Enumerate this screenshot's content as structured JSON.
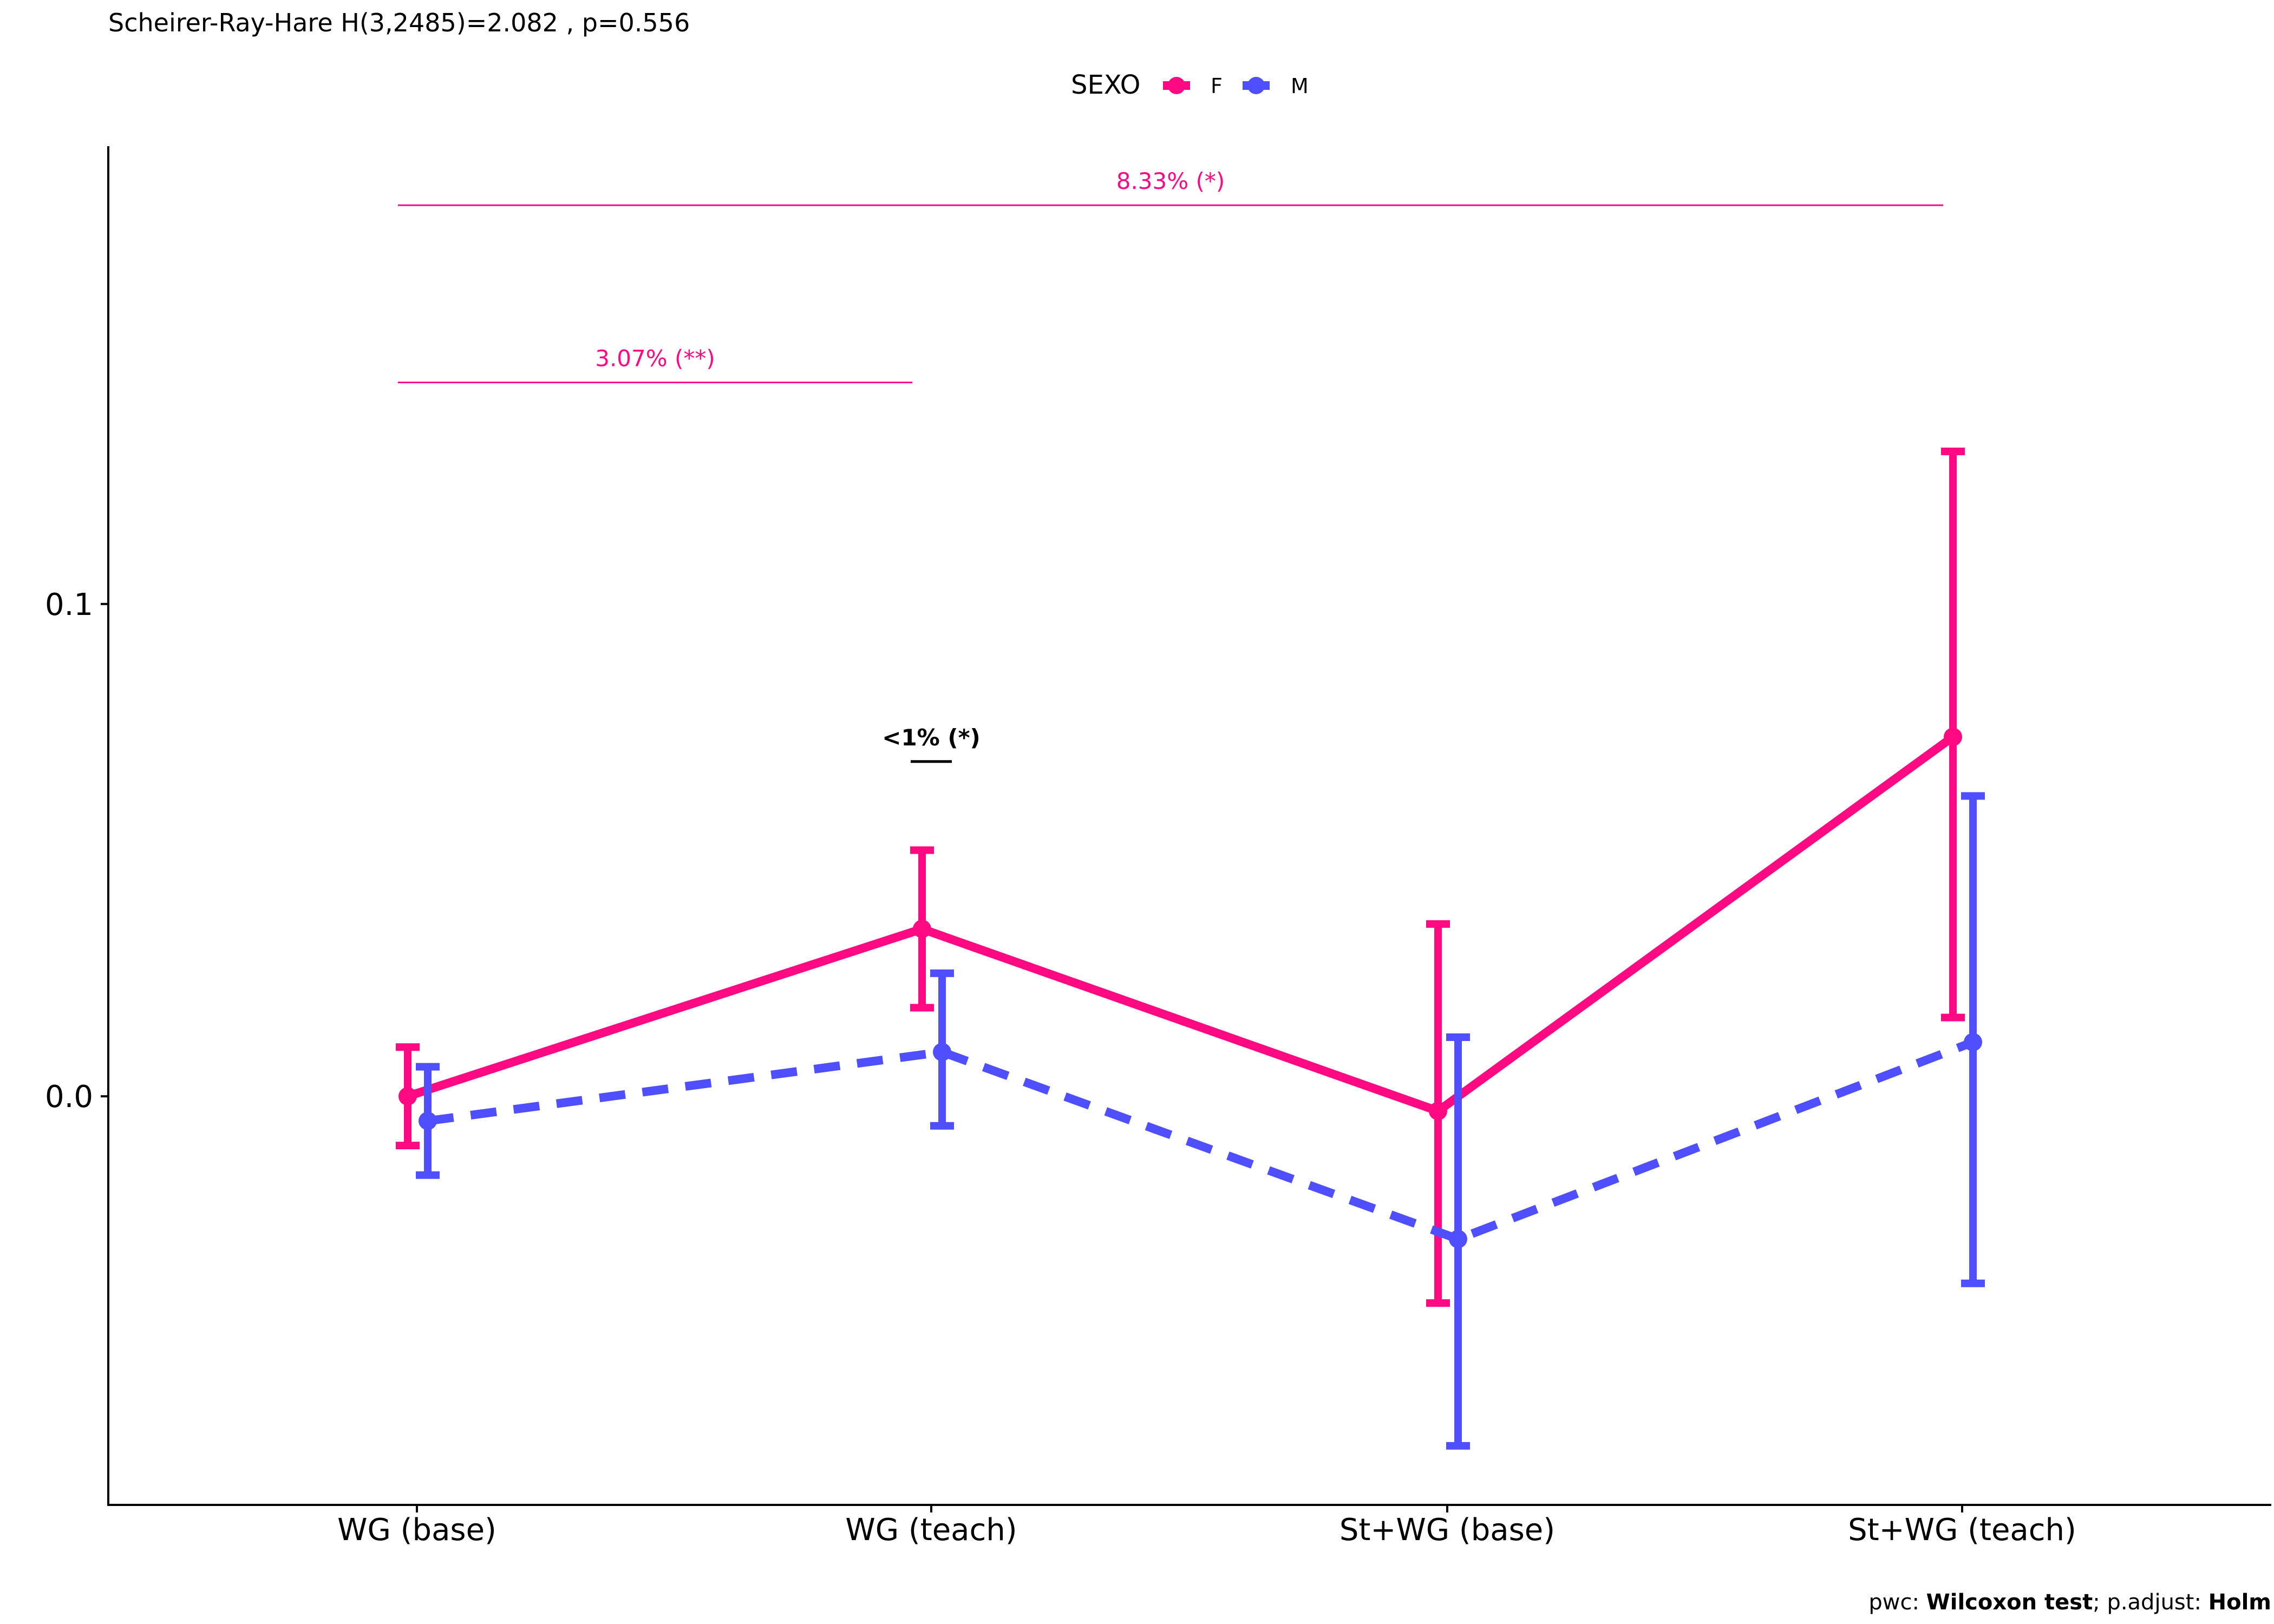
{
  "chart_data": {
    "type": "line",
    "title": "Scheirer-Ray-Hare H(3,2485)=2.082 , p=0.556",
    "xlabel": "",
    "ylabel": "",
    "categories": [
      "WG (base)",
      "WG (teach)",
      "St+WG (base)",
      "St+WG (teach)"
    ],
    "ylim": [
      -0.083,
      0.193
    ],
    "yticks": [
      0.0,
      0.1
    ],
    "ytick_labels": [
      "0.0",
      "0.1"
    ],
    "grid": false,
    "legend": {
      "title": "SEXO",
      "position": "top"
    },
    "series": [
      {
        "name": "F",
        "color": "#FF0A82",
        "linestyle": "solid",
        "values": [
          0.0,
          0.034,
          -0.003,
          0.073
        ],
        "err_low": [
          -0.01,
          0.018,
          -0.042,
          0.016
        ],
        "err_high": [
          0.01,
          0.05,
          0.035,
          0.131
        ]
      },
      {
        "name": "M",
        "color": "#4F4FFF",
        "linestyle": "dashed",
        "values": [
          -0.005,
          0.009,
          -0.029,
          0.011
        ],
        "err_low": [
          -0.016,
          -0.006,
          -0.071,
          -0.038
        ],
        "err_high": [
          0.006,
          0.025,
          0.012,
          0.061
        ]
      }
    ],
    "annotations": [
      {
        "label": "8.33% (*)",
        "from": 0,
        "to": 3,
        "y": 0.181,
        "color": "#FF0A82",
        "bold": false
      },
      {
        "label": "3.07% (**)",
        "from": 0,
        "to": 1,
        "y": 0.145,
        "color": "#FF0A82",
        "bold": false
      },
      {
        "label": "<1% (*)",
        "from": 1,
        "to": 1,
        "y": 0.068,
        "color": "#000000",
        "bold": true
      }
    ],
    "caption": {
      "prefix": "pwc: ",
      "test": "Wilcoxon test",
      "middle": "; p.adjust: ",
      "method": "Holm"
    }
  }
}
